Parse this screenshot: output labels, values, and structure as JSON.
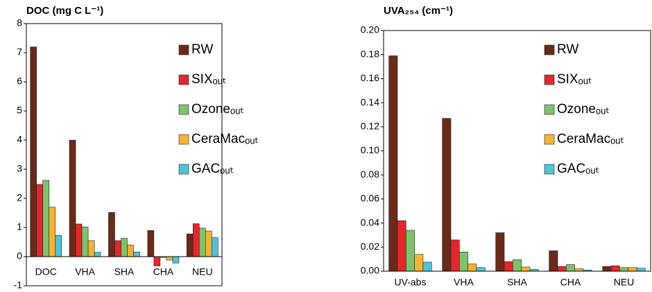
{
  "chart_data": [
    {
      "type": "bar",
      "title": "DOC (mg C L⁻¹)",
      "categories": [
        "DOC",
        "VHA",
        "SHA",
        "CHA",
        "NEU"
      ],
      "series": [
        {
          "name": "RW",
          "color": "#6b2a18",
          "values": [
            7.2,
            4.0,
            1.52,
            0.9,
            0.78
          ]
        },
        {
          "name": "SIXₒᵤₜ",
          "color": "#e5262c",
          "values": [
            2.48,
            1.12,
            0.55,
            -0.32,
            1.13
          ]
        },
        {
          "name": "Ozoneₒᵤₜ",
          "color": "#7cc36a",
          "values": [
            2.62,
            1.02,
            0.63,
            -0.03,
            0.98
          ]
        },
        {
          "name": "CeraMacₒᵤₜ",
          "color": "#f8b232",
          "values": [
            1.7,
            0.55,
            0.4,
            -0.12,
            0.88
          ]
        },
        {
          "name": "GACₒᵤₜ",
          "color": "#4ec3d9",
          "values": [
            0.73,
            0.15,
            0.16,
            -0.22,
            0.65
          ]
        }
      ],
      "ylim": [
        -1,
        8
      ],
      "yticks": [
        -1,
        0,
        1,
        2,
        3,
        4,
        5,
        6,
        7,
        8
      ]
    },
    {
      "type": "bar",
      "title": "UVA₂₅₄ (cm⁻¹)",
      "categories": [
        "UV-abs",
        "VHA",
        "SHA",
        "CHA",
        "NEU"
      ],
      "series": [
        {
          "name": "RW",
          "color": "#6b2a18",
          "values": [
            0.179,
            0.127,
            0.032,
            0.017,
            0.004
          ]
        },
        {
          "name": "SIXₒᵤₜ",
          "color": "#e5262c",
          "values": [
            0.042,
            0.026,
            0.008,
            0.004,
            0.0045
          ]
        },
        {
          "name": "Ozoneₒᵤₜ",
          "color": "#7cc36a",
          "values": [
            0.034,
            0.016,
            0.0095,
            0.0055,
            0.003
          ]
        },
        {
          "name": "CeraMacₒᵤₜ",
          "color": "#f8b232",
          "values": [
            0.014,
            0.006,
            0.0035,
            0.002,
            0.003
          ]
        },
        {
          "name": "GACₒᵤₜ",
          "color": "#4ec3d9",
          "values": [
            0.0075,
            0.003,
            0.0015,
            0.001,
            0.0025
          ]
        }
      ],
      "ylim": [
        0,
        0.2
      ],
      "yticks": [
        {
          "value": 0,
          "label": "0.00"
        },
        {
          "value": 0.02,
          "label": "0.02"
        },
        {
          "value": 0.04,
          "label": "0.04"
        },
        {
          "value": 0.06,
          "label": "0.06"
        },
        {
          "value": 0.08,
          "label": "0.08"
        },
        {
          "value": 0.1,
          "label": "0.10"
        },
        {
          "value": 0.12,
          "label": "0.12"
        },
        {
          "value": 0.14,
          "label": "0.14"
        },
        {
          "value": 0.16,
          "label": "0.16"
        },
        {
          "value": 0.18,
          "label": "0.18"
        },
        {
          "value": 0.2,
          "label": "0.20"
        }
      ]
    }
  ]
}
